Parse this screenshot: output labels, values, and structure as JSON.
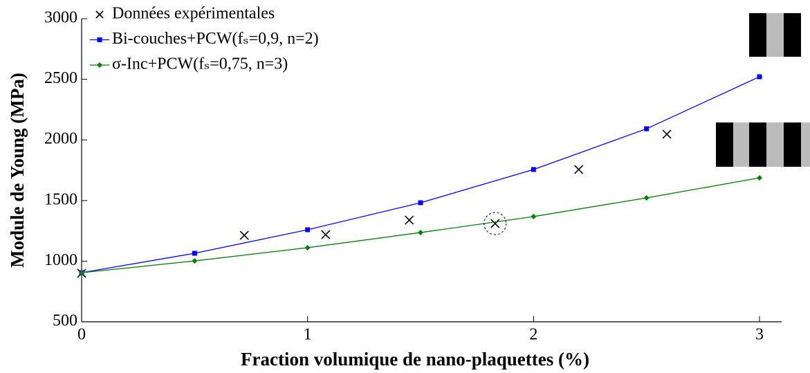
{
  "chart_data": {
    "type": "line",
    "xlabel": "Fraction volumique de nano-plaquettes (%)",
    "ylabel": "Module de Young (MPa)",
    "xlim": [
      0,
      3.1
    ],
    "ylim": [
      500,
      3000
    ],
    "xticks": [
      0,
      1,
      2,
      3
    ],
    "yticks": [
      500,
      1000,
      1500,
      2000,
      2500,
      3000
    ],
    "legend": "upper left",
    "series": [
      {
        "name": "Données expérimentales",
        "color": "#000000",
        "marker": "x",
        "line": false,
        "x": [
          0,
          0.72,
          1.08,
          1.45,
          1.83,
          2.2,
          2.59
        ],
        "values": [
          900,
          1213,
          1219,
          1339,
          1310,
          1756,
          2047
        ]
      },
      {
        "name": "Bi-couches+PCW(fₛ=0,9, n=2)",
        "color": "#0000ff",
        "marker": "square",
        "line": true,
        "x": [
          0,
          0.5,
          1,
          1.5,
          2,
          2.5,
          3
        ],
        "values": [
          905,
          1065,
          1259,
          1482,
          1756,
          2092,
          2521
        ]
      },
      {
        "name": "σ-Inc+PCW(fₛ=0,75, n=3)",
        "color": "#008000",
        "marker": "diamond",
        "line": true,
        "x": [
          0,
          0.5,
          1,
          1.5,
          2,
          2.5,
          3
        ],
        "values": [
          905,
          1002,
          1111,
          1236,
          1368,
          1522,
          1687
        ]
      }
    ]
  }
}
